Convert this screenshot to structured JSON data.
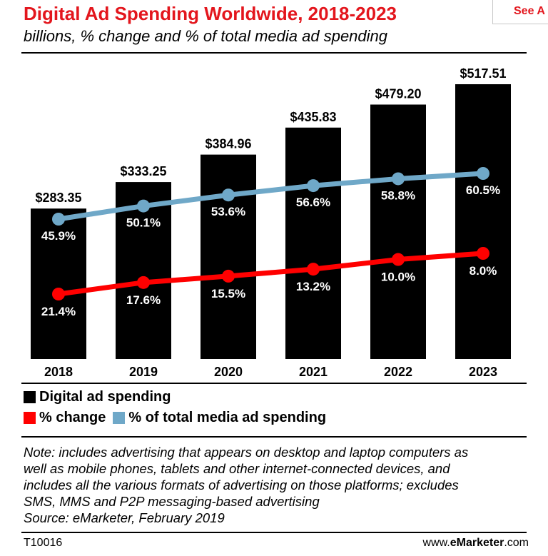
{
  "header": {
    "title": "Digital Ad Spending Worldwide, 2018-2023",
    "subtitle": "billions, % change and % of total media ad spending",
    "see_all": "See A"
  },
  "chart_data": {
    "type": "bar",
    "categories": [
      "2018",
      "2019",
      "2020",
      "2021",
      "2022",
      "2023"
    ],
    "series": [
      {
        "name": "Digital ad spending",
        "type": "bar",
        "color": "#000000",
        "values": [
          283.35,
          333.25,
          384.96,
          435.83,
          479.2,
          517.51
        ],
        "labels": [
          "$283.35",
          "$333.25",
          "$384.96",
          "$435.83",
          "$479.20",
          "$517.51"
        ]
      },
      {
        "name": "% change",
        "type": "line",
        "color": "#ff0000",
        "values": [
          21.4,
          17.6,
          15.5,
          13.2,
          10.0,
          8.0
        ],
        "labels": [
          "21.4%",
          "17.6%",
          "15.5%",
          "13.2%",
          "10.0%",
          "8.0%"
        ]
      },
      {
        "name": "% of total media ad spending",
        "type": "line",
        "color": "#6fa8c8",
        "values": [
          45.9,
          50.1,
          53.6,
          56.6,
          58.8,
          60.5
        ],
        "labels": [
          "45.9%",
          "50.1%",
          "53.6%",
          "56.6%",
          "58.8%",
          "60.5%"
        ]
      }
    ],
    "legend_position": "bottom-left"
  },
  "legend": {
    "row1": [
      {
        "label": "Digital ad spending",
        "color": "#000000"
      }
    ],
    "row2": [
      {
        "label": "% change",
        "color": "#ff0000"
      },
      {
        "label": "% of total media ad spending",
        "color": "#6fa8c8"
      }
    ]
  },
  "note": {
    "lines": [
      "Note: includes advertising that appears on desktop and laptop computers as",
      "well as mobile phones, tablets and other internet-connected devices, and",
      "includes all the various formats of advertising on those platforms; excludes",
      "SMS, MMS and P2P messaging-based advertising",
      "Source: eMarketer, February 2019"
    ]
  },
  "footer": {
    "id": "T10016",
    "site_prefix": "www.",
    "site_brand": "eMarketer",
    "site_suffix": ".com"
  }
}
